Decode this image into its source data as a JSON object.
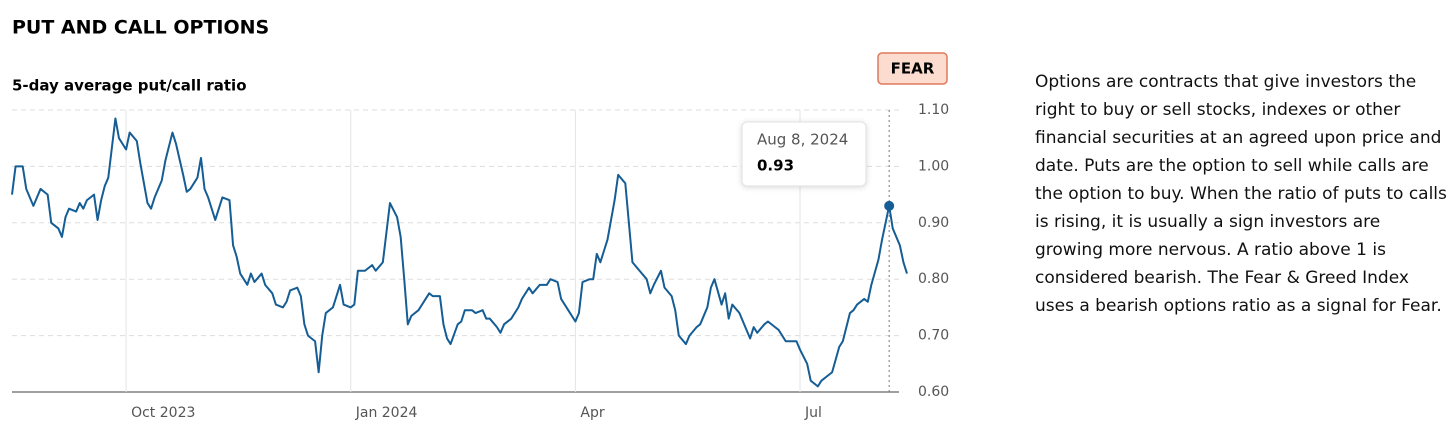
{
  "chart_data": {
    "type": "line",
    "title": "PUT AND CALL OPTIONS",
    "subtitle": "5-day average put/call ratio",
    "badge": "FEAR",
    "series": [
      {
        "color": "#155d95",
        "x": [
          0,
          1,
          3,
          4,
          6,
          8,
          10,
          11,
          13,
          14,
          15,
          16,
          18,
          19,
          20,
          21,
          23,
          24,
          25,
          26,
          27,
          29,
          30,
          32,
          33,
          35,
          36,
          38,
          39,
          40,
          42,
          43,
          45,
          46,
          48,
          49,
          50,
          52,
          53,
          54,
          55,
          57,
          59,
          61,
          62,
          63,
          64,
          66,
          67,
          68,
          70,
          71,
          73,
          74,
          76,
          77,
          78,
          80,
          81,
          82,
          83,
          85,
          86,
          87,
          88,
          90,
          92,
          93,
          95,
          96,
          97,
          99,
          101,
          102,
          104,
          106,
          108,
          109,
          110,
          111,
          112,
          114,
          115,
          117,
          118,
          120,
          121,
          122,
          123,
          125,
          126,
          127,
          129,
          130,
          132,
          133,
          134,
          136,
          137,
          138,
          140,
          142,
          143,
          145,
          146,
          148,
          150,
          151,
          153,
          154,
          156,
          158,
          159,
          160,
          162,
          163,
          164,
          165,
          166,
          167,
          169,
          170,
          172,
          173,
          174,
          176,
          178,
          179,
          180,
          182,
          183,
          185,
          186,
          187,
          189,
          190,
          192,
          193,
          195,
          196,
          197,
          199,
          200,
          201,
          202,
          204,
          206,
          207,
          208,
          209,
          211,
          212,
          214,
          215,
          217,
          218,
          220,
          221,
          223,
          224,
          226,
          227,
          228,
          230,
          232,
          233,
          235,
          236,
          237,
          239,
          240,
          241,
          243,
          244,
          246,
          247,
          249,
          250,
          251
        ],
        "values": [
          0.95,
          1.0,
          1.0,
          0.96,
          0.93,
          0.96,
          0.95,
          0.9,
          0.89,
          0.875,
          0.91,
          0.925,
          0.92,
          0.935,
          0.925,
          0.94,
          0.95,
          0.905,
          0.94,
          0.965,
          0.98,
          1.085,
          1.05,
          1.03,
          1.06,
          1.045,
          1.005,
          0.935,
          0.925,
          0.945,
          0.975,
          1.01,
          1.06,
          1.04,
          0.985,
          0.955,
          0.96,
          0.98,
          1.015,
          0.96,
          0.945,
          0.905,
          0.945,
          0.94,
          0.86,
          0.84,
          0.81,
          0.79,
          0.81,
          0.795,
          0.81,
          0.79,
          0.775,
          0.755,
          0.75,
          0.76,
          0.78,
          0.785,
          0.77,
          0.72,
          0.7,
          0.69,
          0.635,
          0.7,
          0.74,
          0.75,
          0.79,
          0.755,
          0.75,
          0.755,
          0.815,
          0.815,
          0.825,
          0.815,
          0.83,
          0.935,
          0.91,
          0.875,
          0.8,
          0.72,
          0.735,
          0.745,
          0.755,
          0.775,
          0.77,
          0.77,
          0.72,
          0.695,
          0.685,
          0.72,
          0.725,
          0.745,
          0.745,
          0.74,
          0.745,
          0.73,
          0.73,
          0.715,
          0.705,
          0.72,
          0.73,
          0.75,
          0.765,
          0.785,
          0.775,
          0.79,
          0.79,
          0.8,
          0.795,
          0.765,
          0.745,
          0.725,
          0.74,
          0.795,
          0.8,
          0.8,
          0.845,
          0.83,
          0.85,
          0.87,
          0.94,
          0.985,
          0.97,
          0.9,
          0.83,
          0.815,
          0.8,
          0.775,
          0.79,
          0.815,
          0.785,
          0.77,
          0.745,
          0.7,
          0.685,
          0.7,
          0.715,
          0.72,
          0.75,
          0.785,
          0.8,
          0.755,
          0.775,
          0.73,
          0.755,
          0.74,
          0.71,
          0.695,
          0.715,
          0.705,
          0.72,
          0.725,
          0.715,
          0.71,
          0.69,
          0.69,
          0.69,
          0.675,
          0.65,
          0.62,
          0.61,
          0.62,
          0.625,
          0.635,
          0.68,
          0.69,
          0.74,
          0.745,
          0.755,
          0.765,
          0.76,
          0.79,
          0.835,
          0.87,
          0.93,
          0.89,
          0.86,
          0.83,
          0.81
        ]
      }
    ],
    "xlim": [
      0,
      251
    ],
    "xticks": [
      {
        "value": 32,
        "label": "Oct 2023"
      },
      {
        "value": 95,
        "label": "Jan 2024"
      },
      {
        "value": 158,
        "label": "Apr"
      },
      {
        "value": 221,
        "label": "Jul"
      }
    ],
    "ylim": [
      0.6,
      1.1
    ],
    "yticks": [
      {
        "value": 0.6,
        "label": "0.60"
      },
      {
        "value": 0.7,
        "label": "0.70"
      },
      {
        "value": 0.8,
        "label": "0.80"
      },
      {
        "value": 0.9,
        "label": "0.90"
      },
      {
        "value": 1.0,
        "label": "1.00"
      },
      {
        "value": 1.1,
        "label": "1.10"
      }
    ],
    "grid": true,
    "highlight": {
      "x": 246,
      "date": "Aug 8, 2024",
      "value": 0.93
    }
  },
  "description": "Options are contracts that give investors the right to buy or sell stocks, indexes or other financial securities at an agreed upon price and date. Puts are the option to sell while calls are the option to buy. When the ratio of puts to calls is rising, it is usually a sign investors are growing more nervous. A ratio above 1 is considered bearish. The Fear & Greed Index uses a bearish options ratio as a signal for Fear."
}
